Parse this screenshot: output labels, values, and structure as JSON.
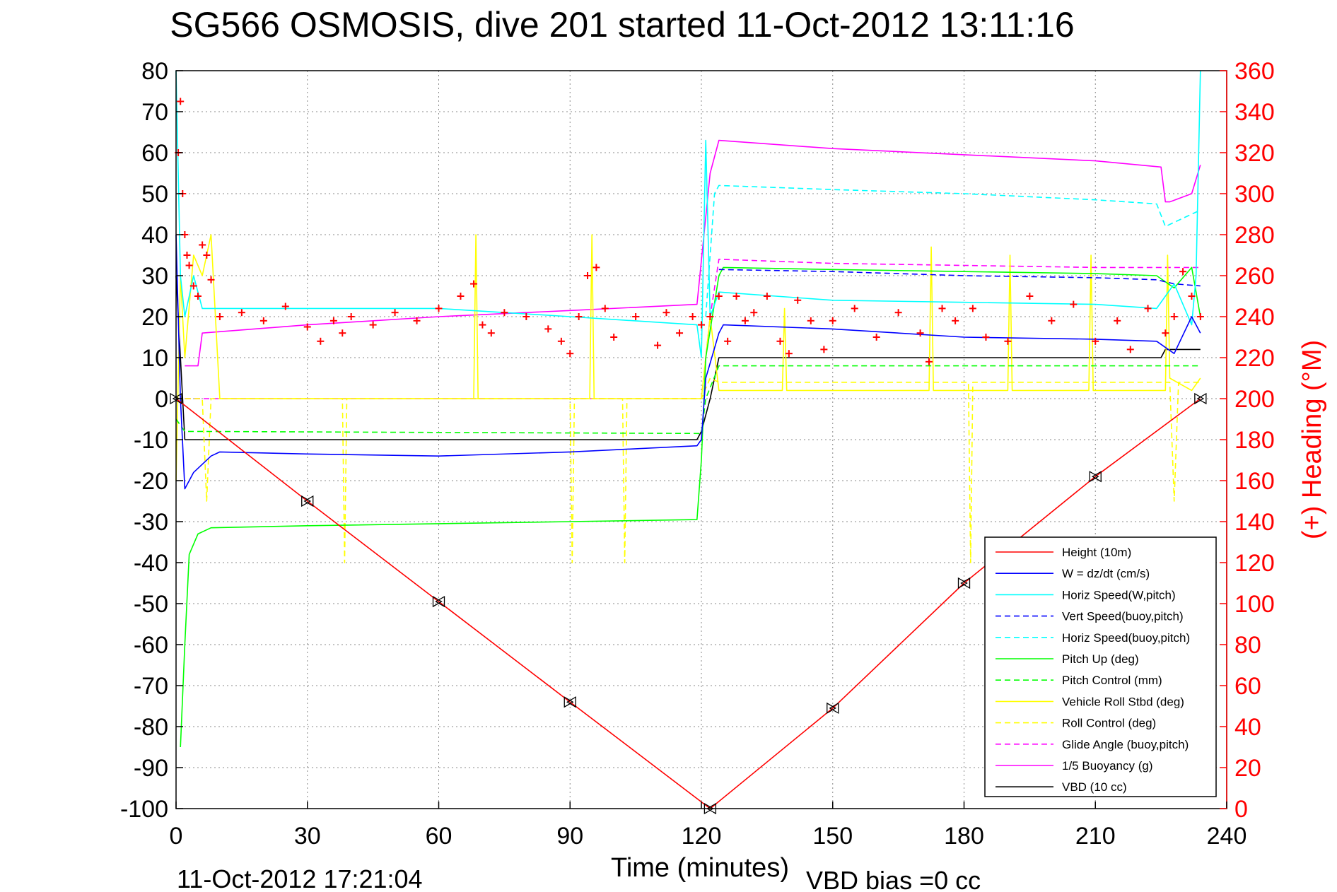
{
  "chart_data": {
    "type": "line",
    "title": "SG566 OSMOSIS, dive 201 started 11-Oct-2012 13:11:16",
    "xlabel": "Time (minutes)",
    "ylabel_right": "(+) Heading (°M)",
    "footer_left": "11-Oct-2012 17:21:04",
    "footer_right": "VBD bias =0 cc",
    "xlim": [
      0,
      240
    ],
    "ylim_left": [
      -100,
      80
    ],
    "ylim_right": [
      0,
      360
    ],
    "grid": true,
    "legend_position": "bottom-right",
    "x_ticks": [
      "0",
      "30",
      "60",
      "90",
      "120",
      "150",
      "180",
      "210",
      "240"
    ],
    "y_ticks_left": [
      "80",
      "70",
      "60",
      "50",
      "40",
      "30",
      "20",
      "10",
      "0",
      "-10",
      "-20",
      "-30",
      "-40",
      "-50",
      "-60",
      "-70",
      "-80",
      "-90",
      "-100"
    ],
    "y_ticks_right": [
      "360",
      "340",
      "320",
      "300",
      "280",
      "260",
      "240",
      "220",
      "200",
      "180",
      "160",
      "140",
      "120",
      "100",
      "80",
      "60",
      "40",
      "20",
      "0"
    ],
    "series": [
      {
        "name": "Height (10m)",
        "color": "#ff0000",
        "dash": "solid",
        "x": [
          0,
          30,
          60,
          90,
          122,
          150,
          180,
          210,
          234
        ],
        "y": [
          0,
          -25,
          -49.5,
          -74,
          -100,
          -75.5,
          -45,
          -19,
          0
        ]
      },
      {
        "name": "W = dz/dt (cm/s)",
        "color": "#0000ff",
        "dash": "solid",
        "x": [
          0,
          1,
          2,
          4,
          8,
          10,
          30,
          60,
          90,
          119,
          120,
          121,
          124,
          125,
          150,
          180,
          210,
          224,
          228,
          232,
          234
        ],
        "y": [
          40,
          0,
          -22,
          -18,
          -14,
          -13,
          -13.5,
          -14,
          -13,
          -11.5,
          -10,
          5,
          16,
          18,
          17,
          15,
          14.5,
          14,
          11,
          20,
          16
        ]
      },
      {
        "name": "Horiz Speed(W,pitch)",
        "color": "#00ffff",
        "dash": "solid",
        "x": [
          0,
          1,
          2,
          4,
          6,
          10,
          30,
          60,
          90,
          119,
          120,
          121,
          122,
          124,
          150,
          180,
          210,
          224,
          228,
          232,
          233,
          234
        ],
        "y": [
          80,
          30,
          20,
          30,
          22,
          22,
          22,
          22,
          20,
          18,
          10,
          63,
          20,
          26,
          24,
          23.5,
          23,
          22,
          28,
          18,
          30,
          80
        ]
      },
      {
        "name": "Vert Speed(buoy,pitch)",
        "color": "#0000ff",
        "dash": "dashed",
        "x": [
          124,
          150,
          180,
          210,
          224,
          228,
          234
        ],
        "y": [
          31.5,
          31,
          30,
          29.5,
          29,
          28,
          27.5
        ]
      },
      {
        "name": "Horiz Speed(buoy,pitch)",
        "color": "#00ffff",
        "dash": "dashed",
        "x": [
          121,
          123,
          124,
          150,
          180,
          210,
          224,
          226,
          234
        ],
        "y": [
          20,
          50,
          52,
          51,
          50,
          48.5,
          47.5,
          42,
          46
        ]
      },
      {
        "name": "Pitch Up (deg)",
        "color": "#00ff00",
        "dash": "solid",
        "x": [
          1,
          2,
          3,
          5,
          8,
          30,
          60,
          90,
          119,
          120,
          121,
          124,
          125,
          150,
          180,
          210,
          224,
          228,
          232,
          234
        ],
        "y": [
          -85,
          -60,
          -38,
          -33,
          -31.5,
          -31,
          -30.5,
          -30,
          -29.5,
          -15,
          10,
          30,
          32,
          31.5,
          31,
          30.5,
          30,
          27,
          32,
          20
        ]
      },
      {
        "name": "Pitch Control (mm)",
        "color": "#00ff00",
        "dash": "dashed",
        "x": [
          0,
          2,
          4,
          120,
          121,
          124,
          234
        ],
        "y": [
          -5,
          -8,
          -8,
          -8.5,
          0,
          8,
          8
        ]
      },
      {
        "name": "Vehicle Roll Stbd (deg)",
        "color": "#ffff00",
        "dash": "solid",
        "x": [
          0,
          1,
          2,
          4,
          6,
          8,
          10,
          68,
          68.5,
          69,
          90,
          94.5,
          95,
          95.5,
          120,
          122,
          124,
          138.5,
          139,
          139.5,
          172,
          172.5,
          173,
          190,
          190.5,
          191,
          208.5,
          209,
          209.5,
          226,
          226.5,
          227,
          232,
          234
        ],
        "y": [
          -20,
          30,
          10,
          35,
          30,
          40,
          0,
          0,
          40,
          0,
          0,
          0,
          40,
          0,
          0,
          20,
          2,
          2,
          22,
          2,
          2,
          37,
          2,
          2,
          35,
          2,
          2,
          35,
          2,
          2,
          35,
          5,
          2,
          5
        ]
      },
      {
        "name": "Roll Control (deg)",
        "color": "#ffff00",
        "dash": "dashed",
        "x": [
          0,
          6,
          7,
          8,
          9,
          38,
          38.5,
          39,
          90,
          90.5,
          91,
          102,
          102.5,
          103,
          120,
          122,
          124,
          181,
          181.5,
          182,
          227,
          228,
          229,
          234
        ],
        "y": [
          0,
          0,
          -25,
          0,
          0,
          0,
          -40,
          0,
          0,
          -40,
          0,
          0,
          -40,
          0,
          0,
          5,
          4,
          4,
          -40,
          4,
          4,
          -25,
          4,
          4
        ]
      },
      {
        "name": "Glide Angle (buoy,pitch)",
        "color": "#ff00ff",
        "dash": "dashed",
        "x": [
          0,
          120,
          122,
          124,
          150,
          180,
          210,
          234
        ],
        "y": [
          0,
          0,
          20,
          34,
          33,
          32.5,
          32,
          32
        ]
      },
      {
        "name": "1/5 Buoyancy (g)",
        "color": "#ff00ff",
        "dash": "solid",
        "x": [
          2,
          4,
          5,
          6,
          30,
          60,
          90,
          119,
          122,
          124,
          150,
          180,
          210,
          225,
          226,
          227,
          232,
          234
        ],
        "y": [
          8,
          8,
          8,
          16,
          18,
          20,
          21.5,
          23,
          55,
          63,
          61,
          59.5,
          58,
          56.5,
          48,
          48,
          50,
          57
        ]
      },
      {
        "name": "VBD (10 cc)",
        "color": "#000000",
        "dash": "solid",
        "x": [
          0,
          2,
          4,
          119,
          120,
          122,
          124,
          150,
          180,
          210,
          225,
          226,
          234
        ],
        "y": [
          30,
          -10,
          -10,
          -10,
          -8,
          0,
          10,
          10,
          10,
          10,
          10,
          12,
          12
        ]
      }
    ],
    "heading_series": {
      "name": "Heading (+)",
      "axis": "right",
      "color": "#ff0000",
      "marker": "+",
      "x": [
        0.5,
        1,
        1.5,
        2,
        2.5,
        3,
        4,
        5,
        6,
        7,
        8,
        10,
        15,
        20,
        25,
        30,
        33,
        36,
        38,
        40,
        45,
        50,
        55,
        60,
        65,
        68,
        70,
        72,
        75,
        80,
        85,
        88,
        90,
        92,
        94,
        96,
        98,
        100,
        105,
        110,
        112,
        115,
        118,
        120,
        122,
        124,
        126,
        128,
        130,
        132,
        135,
        138,
        140,
        142,
        145,
        148,
        150,
        155,
        160,
        165,
        170,
        172,
        175,
        178,
        182,
        185,
        190,
        195,
        200,
        205,
        210,
        215,
        218,
        222,
        226,
        228,
        230,
        232,
        234
      ],
      "y": [
        320,
        345,
        300,
        280,
        270,
        265,
        255,
        250,
        275,
        270,
        258,
        240,
        242,
        238,
        245,
        235,
        228,
        238,
        232,
        240,
        236,
        242,
        238,
        244,
        250,
        256,
        236,
        232,
        242,
        240,
        234,
        228,
        222,
        240,
        260,
        264,
        244,
        230,
        240,
        226,
        242,
        232,
        240,
        236,
        240,
        250,
        228,
        250,
        238,
        242,
        250,
        228,
        222,
        248,
        238,
        224,
        238,
        244,
        230,
        242,
        232,
        218,
        244,
        238,
        244,
        230,
        228,
        250,
        238,
        246,
        228,
        238,
        224,
        244,
        232,
        240,
        262,
        250,
        240
      ]
    }
  }
}
